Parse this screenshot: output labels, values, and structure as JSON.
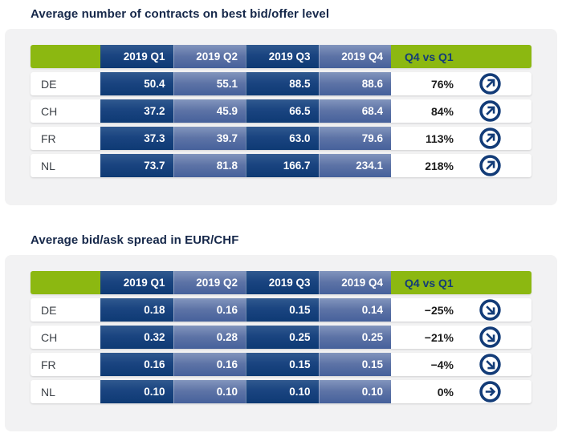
{
  "style": {
    "accent_green": "#8cb811",
    "navy": "#133c78",
    "dark_cell_blue": "#0e3a74",
    "light_cell_blue": "#5d73a6",
    "panel_gray": "#f2f2f3"
  },
  "icons": {
    "up-right": "↗",
    "down-right": "↘",
    "right": "→"
  },
  "chart_data": [
    {
      "type": "table",
      "title": "Average number of contracts on best bid/offer level",
      "columns": [
        "2019 Q1",
        "2019 Q2",
        "2019 Q3",
        "2019 Q4"
      ],
      "change_label": "Q4 vs Q1",
      "rows": [
        {
          "label": "DE",
          "values": [
            "50.4",
            "55.1",
            "88.5",
            "88.6"
          ],
          "change": "76%",
          "trend": "up-right"
        },
        {
          "label": "CH",
          "values": [
            "37.2",
            "45.9",
            "66.5",
            "68.4"
          ],
          "change": "84%",
          "trend": "up-right"
        },
        {
          "label": "FR",
          "values": [
            "37.3",
            "39.7",
            "63.0",
            "79.6"
          ],
          "change": "113%",
          "trend": "up-right"
        },
        {
          "label": "NL",
          "values": [
            "73.7",
            "81.8",
            "166.7",
            "234.1"
          ],
          "change": "218%",
          "trend": "up-right"
        }
      ]
    },
    {
      "type": "table",
      "title": "Average bid/ask spread in EUR/CHF",
      "columns": [
        "2019 Q1",
        "2019 Q2",
        "2019 Q3",
        "2019 Q4"
      ],
      "change_label": "Q4 vs Q1",
      "rows": [
        {
          "label": "DE",
          "values": [
            "0.18",
            "0.16",
            "0.15",
            "0.14"
          ],
          "change": "−25%",
          "trend": "down-right"
        },
        {
          "label": "CH",
          "values": [
            "0.32",
            "0.28",
            "0.25",
            "0.25"
          ],
          "change": "−21%",
          "trend": "down-right"
        },
        {
          "label": "FR",
          "values": [
            "0.16",
            "0.16",
            "0.15",
            "0.15"
          ],
          "change": "−4%",
          "trend": "down-right"
        },
        {
          "label": "NL",
          "values": [
            "0.10",
            "0.10",
            "0.10",
            "0.10"
          ],
          "change": "0%",
          "trend": "right"
        }
      ]
    }
  ]
}
